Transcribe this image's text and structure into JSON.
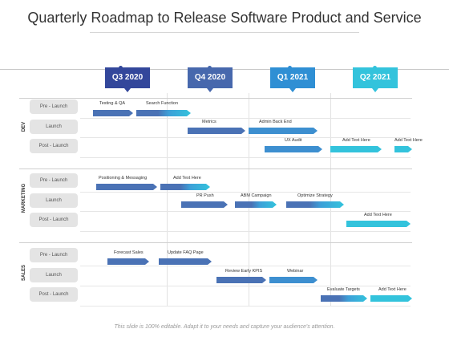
{
  "title": "Quarterly Roadmap to Release Software Product and Service",
  "quarters": [
    {
      "label": "Q3 2020",
      "color": "#33479b"
    },
    {
      "label": "Q4 2020",
      "color": "#4768ad"
    },
    {
      "label": "Q1 2021",
      "color": "#2f8fd4"
    },
    {
      "label": "Q2 2021",
      "color": "#33c3dc"
    }
  ],
  "groups": [
    {
      "name": "DEV",
      "rows": [
        "Pre - Launch",
        "Launch",
        "Post - Launch"
      ]
    },
    {
      "name": "MARKETING",
      "rows": [
        "Pre - Launch",
        "Launch",
        "Post - Launch"
      ]
    },
    {
      "name": "SALES",
      "rows": [
        "Pre - Launch",
        "Launch",
        "Post - Launch"
      ]
    }
  ],
  "tasks": {
    "testing_qa": "Testing & QA",
    "search_function": "Search Function",
    "metrics": "Metrics",
    "admin_back_end": "Admin Back End",
    "ux_audit": "UX Audit",
    "add_text_dev_1": "Add Text Here",
    "add_text_dev_2": "Add Text Here",
    "positioning_messaging": "Positioning & Messaging",
    "add_text_mkt_1": "Add Text Here",
    "pr_push": "PR Push",
    "abm_campaign": "ABM Campaign",
    "optimize_strategy": "Optimize Strategy",
    "add_text_mkt_2": "Add Text Here",
    "forecast_sales": "Forecast Sales",
    "update_faq": "Update FAQ Page",
    "review_early_kpis": "Review Early KPIS",
    "webinar": "Webinar",
    "evaluate_targets": "Evaluate Targets",
    "add_text_sales": "Add Text Here"
  },
  "footer": "This slide is 100% editable. Adapt it to your needs and capture your audience's attention."
}
